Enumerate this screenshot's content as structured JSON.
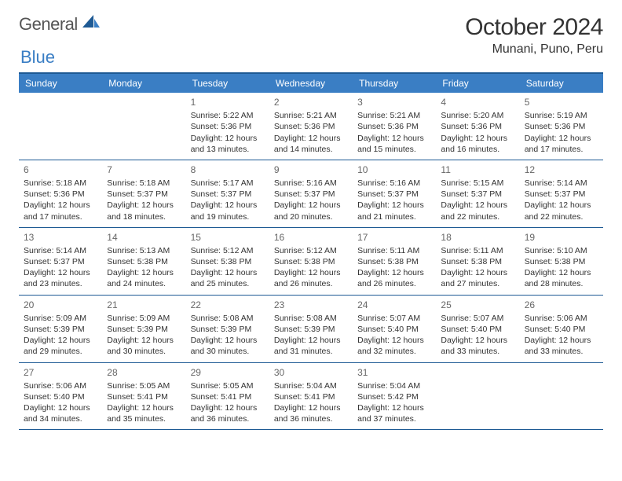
{
  "brand": {
    "word1": "General",
    "word2": "Blue"
  },
  "title": "October 2024",
  "location": "Munani, Puno, Peru",
  "colors": {
    "header_bg": "#3a7ec4",
    "header_border": "#1e5a94",
    "text": "#333333",
    "daynum": "#666666",
    "bg": "#ffffff"
  },
  "day_headers": [
    "Sunday",
    "Monday",
    "Tuesday",
    "Wednesday",
    "Thursday",
    "Friday",
    "Saturday"
  ],
  "weeks": [
    [
      null,
      null,
      {
        "n": "1",
        "sr": "Sunrise: 5:22 AM",
        "ss": "Sunset: 5:36 PM",
        "d1": "Daylight: 12 hours",
        "d2": "and 13 minutes."
      },
      {
        "n": "2",
        "sr": "Sunrise: 5:21 AM",
        "ss": "Sunset: 5:36 PM",
        "d1": "Daylight: 12 hours",
        "d2": "and 14 minutes."
      },
      {
        "n": "3",
        "sr": "Sunrise: 5:21 AM",
        "ss": "Sunset: 5:36 PM",
        "d1": "Daylight: 12 hours",
        "d2": "and 15 minutes."
      },
      {
        "n": "4",
        "sr": "Sunrise: 5:20 AM",
        "ss": "Sunset: 5:36 PM",
        "d1": "Daylight: 12 hours",
        "d2": "and 16 minutes."
      },
      {
        "n": "5",
        "sr": "Sunrise: 5:19 AM",
        "ss": "Sunset: 5:36 PM",
        "d1": "Daylight: 12 hours",
        "d2": "and 17 minutes."
      }
    ],
    [
      {
        "n": "6",
        "sr": "Sunrise: 5:18 AM",
        "ss": "Sunset: 5:36 PM",
        "d1": "Daylight: 12 hours",
        "d2": "and 17 minutes."
      },
      {
        "n": "7",
        "sr": "Sunrise: 5:18 AM",
        "ss": "Sunset: 5:37 PM",
        "d1": "Daylight: 12 hours",
        "d2": "and 18 minutes."
      },
      {
        "n": "8",
        "sr": "Sunrise: 5:17 AM",
        "ss": "Sunset: 5:37 PM",
        "d1": "Daylight: 12 hours",
        "d2": "and 19 minutes."
      },
      {
        "n": "9",
        "sr": "Sunrise: 5:16 AM",
        "ss": "Sunset: 5:37 PM",
        "d1": "Daylight: 12 hours",
        "d2": "and 20 minutes."
      },
      {
        "n": "10",
        "sr": "Sunrise: 5:16 AM",
        "ss": "Sunset: 5:37 PM",
        "d1": "Daylight: 12 hours",
        "d2": "and 21 minutes."
      },
      {
        "n": "11",
        "sr": "Sunrise: 5:15 AM",
        "ss": "Sunset: 5:37 PM",
        "d1": "Daylight: 12 hours",
        "d2": "and 22 minutes."
      },
      {
        "n": "12",
        "sr": "Sunrise: 5:14 AM",
        "ss": "Sunset: 5:37 PM",
        "d1": "Daylight: 12 hours",
        "d2": "and 22 minutes."
      }
    ],
    [
      {
        "n": "13",
        "sr": "Sunrise: 5:14 AM",
        "ss": "Sunset: 5:37 PM",
        "d1": "Daylight: 12 hours",
        "d2": "and 23 minutes."
      },
      {
        "n": "14",
        "sr": "Sunrise: 5:13 AM",
        "ss": "Sunset: 5:38 PM",
        "d1": "Daylight: 12 hours",
        "d2": "and 24 minutes."
      },
      {
        "n": "15",
        "sr": "Sunrise: 5:12 AM",
        "ss": "Sunset: 5:38 PM",
        "d1": "Daylight: 12 hours",
        "d2": "and 25 minutes."
      },
      {
        "n": "16",
        "sr": "Sunrise: 5:12 AM",
        "ss": "Sunset: 5:38 PM",
        "d1": "Daylight: 12 hours",
        "d2": "and 26 minutes."
      },
      {
        "n": "17",
        "sr": "Sunrise: 5:11 AM",
        "ss": "Sunset: 5:38 PM",
        "d1": "Daylight: 12 hours",
        "d2": "and 26 minutes."
      },
      {
        "n": "18",
        "sr": "Sunrise: 5:11 AM",
        "ss": "Sunset: 5:38 PM",
        "d1": "Daylight: 12 hours",
        "d2": "and 27 minutes."
      },
      {
        "n": "19",
        "sr": "Sunrise: 5:10 AM",
        "ss": "Sunset: 5:38 PM",
        "d1": "Daylight: 12 hours",
        "d2": "and 28 minutes."
      }
    ],
    [
      {
        "n": "20",
        "sr": "Sunrise: 5:09 AM",
        "ss": "Sunset: 5:39 PM",
        "d1": "Daylight: 12 hours",
        "d2": "and 29 minutes."
      },
      {
        "n": "21",
        "sr": "Sunrise: 5:09 AM",
        "ss": "Sunset: 5:39 PM",
        "d1": "Daylight: 12 hours",
        "d2": "and 30 minutes."
      },
      {
        "n": "22",
        "sr": "Sunrise: 5:08 AM",
        "ss": "Sunset: 5:39 PM",
        "d1": "Daylight: 12 hours",
        "d2": "and 30 minutes."
      },
      {
        "n": "23",
        "sr": "Sunrise: 5:08 AM",
        "ss": "Sunset: 5:39 PM",
        "d1": "Daylight: 12 hours",
        "d2": "and 31 minutes."
      },
      {
        "n": "24",
        "sr": "Sunrise: 5:07 AM",
        "ss": "Sunset: 5:40 PM",
        "d1": "Daylight: 12 hours",
        "d2": "and 32 minutes."
      },
      {
        "n": "25",
        "sr": "Sunrise: 5:07 AM",
        "ss": "Sunset: 5:40 PM",
        "d1": "Daylight: 12 hours",
        "d2": "and 33 minutes."
      },
      {
        "n": "26",
        "sr": "Sunrise: 5:06 AM",
        "ss": "Sunset: 5:40 PM",
        "d1": "Daylight: 12 hours",
        "d2": "and 33 minutes."
      }
    ],
    [
      {
        "n": "27",
        "sr": "Sunrise: 5:06 AM",
        "ss": "Sunset: 5:40 PM",
        "d1": "Daylight: 12 hours",
        "d2": "and 34 minutes."
      },
      {
        "n": "28",
        "sr": "Sunrise: 5:05 AM",
        "ss": "Sunset: 5:41 PM",
        "d1": "Daylight: 12 hours",
        "d2": "and 35 minutes."
      },
      {
        "n": "29",
        "sr": "Sunrise: 5:05 AM",
        "ss": "Sunset: 5:41 PM",
        "d1": "Daylight: 12 hours",
        "d2": "and 36 minutes."
      },
      {
        "n": "30",
        "sr": "Sunrise: 5:04 AM",
        "ss": "Sunset: 5:41 PM",
        "d1": "Daylight: 12 hours",
        "d2": "and 36 minutes."
      },
      {
        "n": "31",
        "sr": "Sunrise: 5:04 AM",
        "ss": "Sunset: 5:42 PM",
        "d1": "Daylight: 12 hours",
        "d2": "and 37 minutes."
      },
      null,
      null
    ]
  ]
}
